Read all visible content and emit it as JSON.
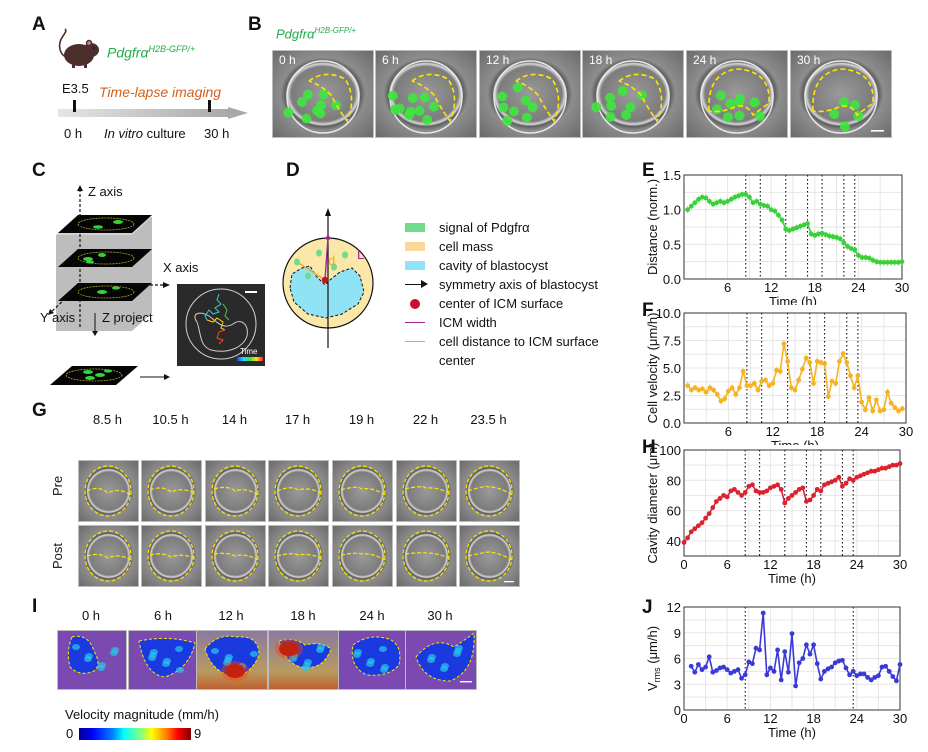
{
  "panels": {
    "A": "A",
    "B": "B",
    "C": "C",
    "D": "D",
    "E": "E",
    "F": "F",
    "G": "G",
    "H": "H",
    "I": "I",
    "J": "J"
  },
  "panelA": {
    "genotype_base": "Pdgfrα",
    "genotype_sup": "H2B-GFP/+",
    "stage": "E3.5",
    "imaging_label": "Time-lapse imaging",
    "start": "0 h",
    "culture_italic": "In vitro",
    "culture_rest": " culture",
    "end": "30 h"
  },
  "panelB": {
    "genotype_base": "Pdgfrα",
    "genotype_sup": "H2B-GFP/+",
    "frames": [
      "0 h",
      "6 h",
      "12 h",
      "18 h",
      "24 h",
      "30 h"
    ]
  },
  "panelC": {
    "z_axis": "Z axis",
    "x_axis": "X axis",
    "y_axis": "Y axis",
    "z_project": "Z project",
    "time_label": "Time"
  },
  "panelD": {
    "label_L": "L",
    "label_d": "d",
    "legend": [
      {
        "label": "signal of Pdgfrα",
        "kind": "swatch",
        "color": "#6fdc8c"
      },
      {
        "label": "cell mass",
        "kind": "swatch",
        "color": "#fbd79a"
      },
      {
        "label": "cavity of blastocyst",
        "kind": "swatch",
        "color": "#8fe3f5"
      },
      {
        "label": "symmetry axis of blastocyst",
        "kind": "arrow",
        "color": "#111111"
      },
      {
        "label": "center of ICM surface",
        "kind": "dot",
        "color": "#c8102e"
      },
      {
        "label": "ICM width",
        "kind": "line",
        "color": "#a020a0"
      },
      {
        "label": "cell distance to ICM surface",
        "kind": "line",
        "color": "#f5a623"
      },
      {
        "label": "center",
        "kind": "none",
        "color": ""
      }
    ]
  },
  "panelG": {
    "times": [
      "8.5 h",
      "10.5 h",
      "14 h",
      "17 h",
      "19 h",
      "22 h",
      "23.5 h"
    ],
    "rows": [
      "Pre",
      "Post"
    ]
  },
  "panelI": {
    "frames": [
      "0 h",
      "6 h",
      "12 h",
      "18 h",
      "24 h",
      "30 h"
    ],
    "colorbar_title": "Velocity magnitude (mm/h)",
    "colorbar_min": "0",
    "colorbar_max": "9"
  },
  "chart_data": [
    {
      "id": "E",
      "type": "line",
      "title": "",
      "xlabel": "Time (h)",
      "ylabel": "Distance (norm.)",
      "xlim": [
        0,
        30
      ],
      "ylim": [
        0,
        1.5
      ],
      "xticks": [
        6,
        12,
        18,
        24,
        30
      ],
      "yticks": [
        "0.0",
        "0.5",
        "1.0",
        "1.5"
      ],
      "grid": true,
      "color": "#3ccf3c",
      "vlines": [
        8.5,
        10.5,
        14,
        17,
        19,
        22,
        23.5
      ],
      "x": [
        0.5,
        1,
        1.5,
        2,
        2.5,
        3,
        3.5,
        4,
        4.5,
        5,
        5.5,
        6,
        6.5,
        7,
        7.5,
        8,
        8.5,
        9,
        9.5,
        10,
        10.5,
        11,
        11.5,
        12,
        12.5,
        13,
        13.5,
        14,
        14.5,
        15,
        15.5,
        16,
        16.5,
        17,
        17.5,
        18,
        18.5,
        19,
        19.5,
        20,
        20.5,
        21,
        21.5,
        22,
        22.5,
        23,
        23.5,
        24,
        24.5,
        25,
        25.5,
        26,
        26.5,
        27,
        27.5,
        28,
        28.5,
        29,
        29.5,
        30
      ],
      "values": [
        1.0,
        1.05,
        1.1,
        1.15,
        1.18,
        1.17,
        1.12,
        1.08,
        1.1,
        1.12,
        1.1,
        1.12,
        1.15,
        1.18,
        1.2,
        1.22,
        1.22,
        1.18,
        1.1,
        1.12,
        1.08,
        1.06,
        1.05,
        1.0,
        0.98,
        0.92,
        0.85,
        0.72,
        0.7,
        0.72,
        0.74,
        0.76,
        0.78,
        0.8,
        0.65,
        0.63,
        0.65,
        0.66,
        0.64,
        0.62,
        0.61,
        0.6,
        0.58,
        0.52,
        0.47,
        0.44,
        0.42,
        0.34,
        0.31,
        0.31,
        0.3,
        0.27,
        0.25,
        0.24,
        0.24,
        0.24,
        0.24,
        0.24,
        0.24,
        0.25
      ]
    },
    {
      "id": "F",
      "type": "line",
      "title": "",
      "xlabel": "Time (h)",
      "ylabel": "Cell velocity (μm/h)",
      "xlim": [
        0,
        30
      ],
      "ylim": [
        0,
        10
      ],
      "xticks": [
        6,
        12,
        18,
        24,
        30
      ],
      "yticks": [
        "0.0",
        "2.5",
        "5.0",
        "7.5",
        "10.0"
      ],
      "grid": true,
      "color": "#f5b324",
      "vlines": [
        8.5,
        10.5,
        14,
        17,
        19,
        22,
        23.5
      ],
      "x": [
        0.5,
        1,
        1.5,
        2,
        2.5,
        3,
        3.5,
        4,
        4.5,
        5,
        5.5,
        6,
        6.5,
        7,
        7.5,
        8,
        8.5,
        9,
        9.5,
        10,
        10.5,
        11,
        11.5,
        12,
        12.5,
        13,
        13.5,
        14,
        14.5,
        15,
        15.5,
        16,
        16.5,
        17,
        17.5,
        18,
        18.5,
        19,
        19.5,
        20,
        20.5,
        21,
        21.5,
        22,
        22.5,
        23,
        23.5,
        24,
        24.5,
        25,
        25.5,
        26,
        26.5,
        27,
        27.5,
        28,
        28.5,
        29,
        29.5
      ],
      "values": [
        3.4,
        3.0,
        3.2,
        3.0,
        3.1,
        2.8,
        3.2,
        3.0,
        2.6,
        2.0,
        2.2,
        2.9,
        3.2,
        2.6,
        3.2,
        4.7,
        3.4,
        3.4,
        3.6,
        3.0,
        3.8,
        3.9,
        3.4,
        3.6,
        4.8,
        4.7,
        7.2,
        5.6,
        3.2,
        3.0,
        3.9,
        4.9,
        5.9,
        5.5,
        3.6,
        5.6,
        5.5,
        5.4,
        2.4,
        3.8,
        3.6,
        5.6,
        6.3,
        5.5,
        4.3,
        3.2,
        4.3,
        1.9,
        1.2,
        2.3,
        1.1,
        2.1,
        1.1,
        1.2,
        2.8,
        1.8,
        1.4,
        1.1,
        1.3
      ]
    },
    {
      "id": "H",
      "type": "line",
      "title": "",
      "xlabel": "Time (h)",
      "ylabel": "Cavity diameter (μm)",
      "xlim": [
        0,
        30
      ],
      "ylim": [
        30,
        100
      ],
      "xticks": [
        0,
        6,
        12,
        18,
        24,
        30
      ],
      "yticks": [
        "40",
        "60",
        "80",
        "100"
      ],
      "grid": true,
      "color": "#d9232e",
      "vlines": [
        8.5,
        10.5,
        14,
        17,
        19,
        22,
        23.5
      ],
      "x": [
        0,
        0.5,
        1,
        1.5,
        2,
        2.5,
        3,
        3.5,
        4,
        4.5,
        5,
        5.5,
        6,
        6.5,
        7,
        7.5,
        8,
        8.5,
        9,
        9.5,
        10,
        10.5,
        11,
        11.5,
        12,
        12.5,
        13,
        13.5,
        14,
        14.5,
        15,
        15.5,
        16,
        16.5,
        17,
        17.5,
        18,
        18.5,
        19,
        19.5,
        20,
        20.5,
        21,
        21.5,
        22,
        22.5,
        23,
        23.5,
        24,
        24.5,
        25,
        25.5,
        26,
        26.5,
        27,
        27.5,
        28,
        28.5,
        29,
        29.5,
        30
      ],
      "values": [
        39,
        42,
        46,
        48,
        50,
        52,
        55,
        58,
        62,
        66,
        68,
        70,
        69,
        73,
        74,
        72,
        70,
        72,
        76,
        77,
        73,
        72,
        72,
        73,
        75,
        76,
        77,
        74,
        65,
        68,
        70,
        72,
        74,
        75,
        66,
        67,
        70,
        74,
        73,
        77,
        78,
        79,
        80,
        82,
        76,
        78,
        81,
        80,
        82,
        83,
        84,
        85,
        86,
        86,
        87,
        88,
        88,
        89,
        90,
        90,
        91
      ]
    },
    {
      "id": "J",
      "type": "line",
      "title": "",
      "xlabel": "Time (h)",
      "ylabel": "V_rms (μm/h)",
      "xlim": [
        0,
        30
      ],
      "ylim": [
        0,
        12
      ],
      "xticks": [
        0,
        6,
        12,
        18,
        24,
        30
      ],
      "yticks": [
        "0",
        "3",
        "6",
        "9",
        "12"
      ],
      "grid": true,
      "color": "#3a3ad6",
      "vlines": [
        8.5,
        23.5
      ],
      "x": [
        1,
        1.5,
        2,
        2.5,
        3,
        3.5,
        4,
        4.5,
        5,
        5.5,
        6,
        6.5,
        7,
        7.5,
        8,
        8.5,
        9,
        9.5,
        10,
        10.5,
        11,
        11.5,
        12,
        12.5,
        13,
        13.5,
        14,
        14.5,
        15,
        15.5,
        16,
        16.5,
        17,
        17.5,
        18,
        18.5,
        19,
        19.5,
        20,
        20.5,
        21,
        21.5,
        22,
        22.5,
        23,
        23.5,
        24,
        24.5,
        25,
        25.5,
        26,
        26.5,
        27,
        27.5,
        28,
        28.5,
        29,
        29.5,
        30
      ],
      "values": [
        5.1,
        4.4,
        5.3,
        4.7,
        5.0,
        6.2,
        4.4,
        4.6,
        4.9,
        5.0,
        4.7,
        4.3,
        4.5,
        4.7,
        3.7,
        4.1,
        5.6,
        5.4,
        7.2,
        7.0,
        11.3,
        4.1,
        4.9,
        4.5,
        7.0,
        3.5,
        6.8,
        4.4,
        8.9,
        2.8,
        5.5,
        6.0,
        7.6,
        6.5,
        7.6,
        5.4,
        3.6,
        4.5,
        4.8,
        5.0,
        5.5,
        5.7,
        5.8,
        4.9,
        4.1,
        4.5,
        4.0,
        4.2,
        4.2,
        3.8,
        3.5,
        3.8,
        4.0,
        5.0,
        5.1,
        4.5,
        3.9,
        3.4,
        5.3
      ]
    }
  ]
}
